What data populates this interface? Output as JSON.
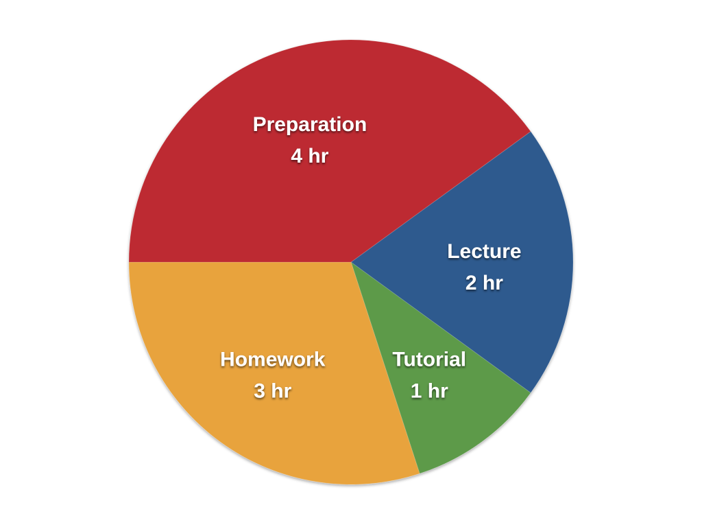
{
  "chart_data": {
    "type": "pie",
    "unit": "hr",
    "slices": [
      {
        "label": "Lecture",
        "value": 2,
        "value_label": "2 hr",
        "color": "#2e5a8e"
      },
      {
        "label": "Tutorial",
        "value": 1,
        "value_label": "1 hr",
        "color": "#5d9a4a"
      },
      {
        "label": "Homework",
        "value": 3,
        "value_label": "3 hr",
        "color": "#e8a33e"
      },
      {
        "label": "Preparation",
        "value": 4,
        "value_label": "4 hr",
        "color": "#bd2b30"
      }
    ],
    "start_angle_deg": -36,
    "direction": "clockwise",
    "legend": "none",
    "labels": "inside"
  }
}
